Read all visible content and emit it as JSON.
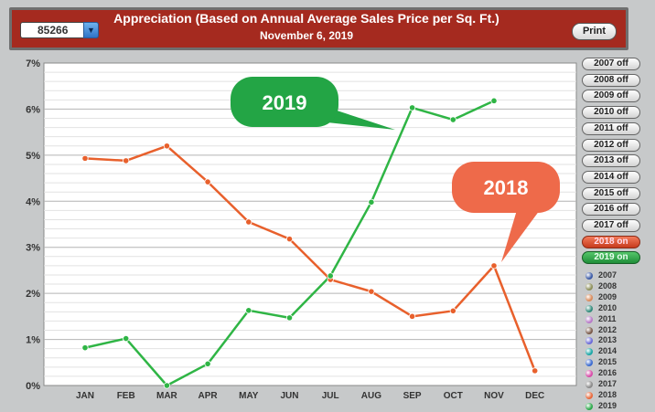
{
  "header": {
    "zip_code": "85266",
    "title": "Appreciation (Based on Annual Average Sales Price per Sq. Ft.)",
    "date": "November 6, 2019",
    "print_label": "Print"
  },
  "toggles": [
    {
      "label": "2007 off",
      "state": "off"
    },
    {
      "label": "2008 off",
      "state": "off"
    },
    {
      "label": "2009 off",
      "state": "off"
    },
    {
      "label": "2010 off",
      "state": "off"
    },
    {
      "label": "2011 off",
      "state": "off"
    },
    {
      "label": "2012 off",
      "state": "off"
    },
    {
      "label": "2013 off",
      "state": "off"
    },
    {
      "label": "2014 off",
      "state": "off"
    },
    {
      "label": "2015 off",
      "state": "off"
    },
    {
      "label": "2016 off",
      "state": "off"
    },
    {
      "label": "2017 off",
      "state": "off"
    },
    {
      "label": "2018 on",
      "state": "on-red"
    },
    {
      "label": "2019 on",
      "state": "on-green"
    }
  ],
  "legend": [
    {
      "label": "2007",
      "color": "#3b5aa6"
    },
    {
      "label": "2008",
      "color": "#8d8f5a"
    },
    {
      "label": "2009",
      "color": "#d98a5a"
    },
    {
      "label": "2010",
      "color": "#2f8a7a"
    },
    {
      "label": "2011",
      "color": "#b77ac8"
    },
    {
      "label": "2012",
      "color": "#7a5a4a"
    },
    {
      "label": "2013",
      "color": "#6a6ad8"
    },
    {
      "label": "2014",
      "color": "#1aa6a6"
    },
    {
      "label": "2015",
      "color": "#3a6ad0"
    },
    {
      "label": "2016",
      "color": "#d84aa8"
    },
    {
      "label": "2017",
      "color": "#8a8a8a"
    },
    {
      "label": "2018",
      "color": "#e8683a"
    },
    {
      "label": "2019",
      "color": "#2ca84a"
    }
  ],
  "chart_data": {
    "type": "line",
    "categories": [
      "JAN",
      "FEB",
      "MAR",
      "APR",
      "MAY",
      "JUN",
      "JUL",
      "AUG",
      "SEP",
      "OCT",
      "NOV",
      "DEC"
    ],
    "ylim": [
      0,
      7
    ],
    "yticks": [
      "0%",
      "1%",
      "2%",
      "3%",
      "4%",
      "5%",
      "6%",
      "7%"
    ],
    "grid": true,
    "series": [
      {
        "name": "2018",
        "color": "#e8602c",
        "values": [
          4.93,
          4.88,
          5.2,
          4.42,
          3.55,
          3.18,
          2.3,
          2.04,
          1.5,
          1.62,
          2.6,
          0.32
        ]
      },
      {
        "name": "2019",
        "color": "#2fb545",
        "values": [
          0.82,
          1.02,
          0.0,
          0.47,
          1.63,
          1.47,
          2.38,
          3.98,
          6.03,
          5.77,
          6.18,
          null
        ]
      }
    ],
    "callouts": [
      {
        "label": "2019",
        "series": "2019",
        "color": "#23a545"
      },
      {
        "label": "2018",
        "series": "2018",
        "color": "#ee6a4a"
      }
    ]
  }
}
